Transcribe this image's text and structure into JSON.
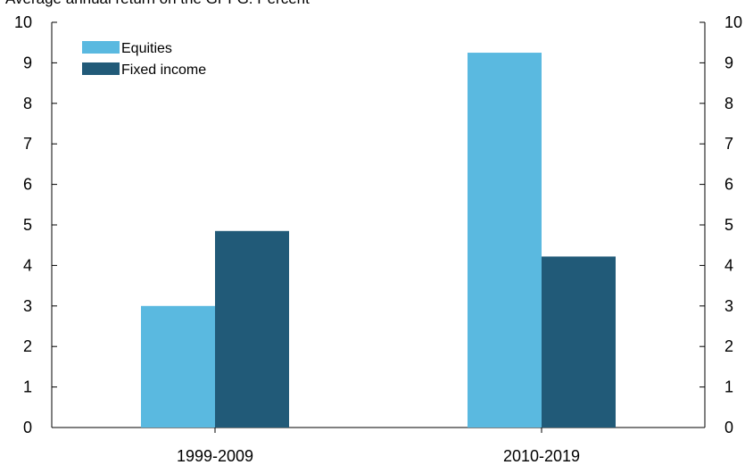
{
  "chart_data": {
    "type": "bar",
    "title": "Average annual return on the GPFG. Percent",
    "categories": [
      "1999-2009",
      "2010-2019"
    ],
    "series": [
      {
        "name": "Equities",
        "values": [
          3.0,
          9.25
        ],
        "color": "#5ab9e0"
      },
      {
        "name": "Fixed income",
        "values": [
          4.85,
          4.22
        ],
        "color": "#215a78"
      }
    ],
    "ylim": [
      0,
      10
    ],
    "yticks": [
      0,
      1,
      2,
      3,
      4,
      5,
      6,
      7,
      8,
      9,
      10
    ],
    "axes": "left-and-right",
    "grid": false,
    "legend_position": "top-left"
  }
}
